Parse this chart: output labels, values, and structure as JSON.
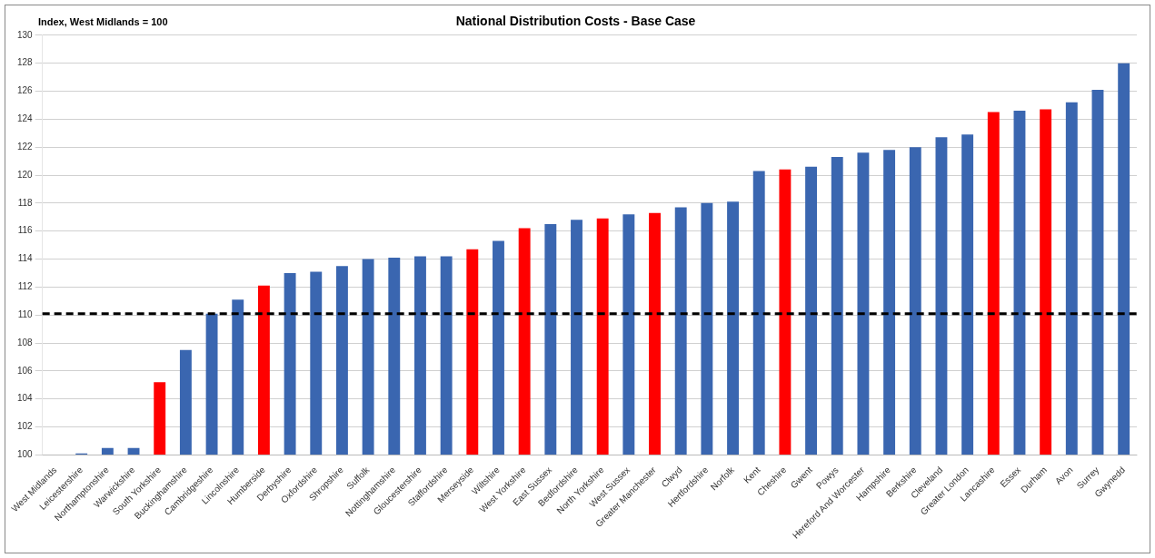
{
  "chart_data": {
    "type": "bar",
    "title": "National Distribution Costs - Base Case",
    "ylabel": "Index, West Midlands = 100",
    "categories": [
      "West Midlands",
      "Leicestershire",
      "Northamptonshire",
      "Warwickshire",
      "South Yorkshire",
      "Buckinghamshire",
      "Cambridgeshire",
      "Lincolnshire",
      "Humberside",
      "Derbyshire",
      "Oxfordshire",
      "Shropshire",
      "Suffolk",
      "Nottinghamshire",
      "Gloucestershire",
      "Staffordshire",
      "Merseyside",
      "Wiltshire",
      "West Yorkshire",
      "East Sussex",
      "Bedfordshire",
      "North Yorkshire",
      "West Sussex",
      "Greater Manchester",
      "Clwyd",
      "Hertfordshire",
      "Norfolk",
      "Kent",
      "Cheshire",
      "Gwent",
      "Powys",
      "Hereford And Worcester",
      "Hampshire",
      "Berkshire",
      "Cleveland",
      "Greater London",
      "Lancashire",
      "Essex",
      "Durham",
      "Avon",
      "Surrey",
      "Gwynedd"
    ],
    "values": [
      100,
      100.1,
      100.5,
      100.5,
      105.2,
      107.5,
      110.1,
      111.1,
      112.1,
      113.0,
      113.1,
      113.5,
      114.0,
      114.1,
      114.2,
      114.2,
      114.7,
      115.3,
      116.2,
      116.5,
      116.8,
      116.9,
      117.2,
      117.3,
      117.7,
      118.0,
      118.1,
      120.3,
      120.4,
      120.6,
      121.3,
      121.6,
      121.8,
      122.0,
      122.7,
      122.9,
      124.5,
      124.6,
      124.7,
      125.2,
      126.1,
      128.0
    ],
    "colors": [
      "#3a66b0",
      "#3a66b0",
      "#3a66b0",
      "#3a66b0",
      "#ff0000",
      "#3a66b0",
      "#3a66b0",
      "#3a66b0",
      "#ff0000",
      "#3a66b0",
      "#3a66b0",
      "#3a66b0",
      "#3a66b0",
      "#3a66b0",
      "#3a66b0",
      "#3a66b0",
      "#ff0000",
      "#3a66b0",
      "#ff0000",
      "#3a66b0",
      "#3a66b0",
      "#ff0000",
      "#3a66b0",
      "#ff0000",
      "#3a66b0",
      "#3a66b0",
      "#3a66b0",
      "#3a66b0",
      "#ff0000",
      "#3a66b0",
      "#3a66b0",
      "#3a66b0",
      "#3a66b0",
      "#3a66b0",
      "#3a66b0",
      "#3a66b0",
      "#ff0000",
      "#3a66b0",
      "#ff0000",
      "#3a66b0",
      "#3a66b0",
      "#3a66b0"
    ],
    "ylim": [
      100,
      130
    ],
    "yticks": [
      100,
      102,
      104,
      106,
      108,
      110,
      112,
      114,
      116,
      118,
      120,
      122,
      124,
      126,
      128,
      130
    ],
    "grid": "y",
    "legend": false,
    "ref_lines": [
      {
        "axis": "y",
        "value": 110.1,
        "color": "#000000",
        "line_style": "dashed"
      }
    ]
  }
}
